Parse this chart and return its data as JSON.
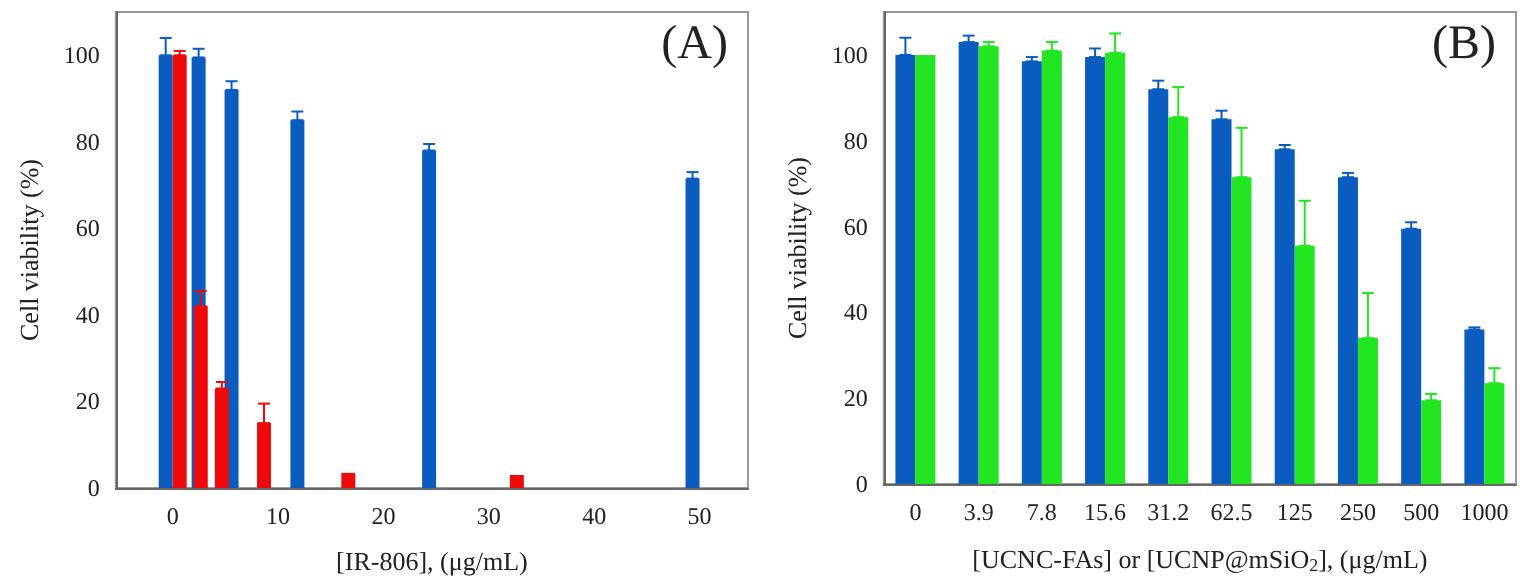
{
  "chart_data": [
    {
      "type": "bar",
      "xlabel": "[IR-806], (μg/mL)",
      "ylabel": "Cell viability (%)",
      "annotations": [
        "(A)"
      ],
      "xlim": [
        -5.4,
        54.6
      ],
      "xticks": [
        0,
        10,
        20,
        30,
        40,
        50
      ],
      "ylim": [
        0,
        110
      ],
      "yticks": [
        0,
        20,
        40,
        60,
        80,
        100
      ],
      "grid": false,
      "legend": false,
      "series": [
        {
          "color": "#0a5dbf",
          "x": [
            0,
            3.125,
            6.25,
            12.5,
            25,
            50
          ],
          "values": [
            100,
            99.5,
            92,
            85,
            78,
            71.5
          ],
          "errors": [
            [
              100,
              104
            ],
            [
              99.5,
              101.5
            ],
            [
              92,
              94
            ],
            [
              85,
              87
            ],
            [
              78,
              79.5
            ],
            [
              71.5,
              73
            ]
          ]
        },
        {
          "color": "#ee0a0a",
          "x": [
            0,
            2,
            4,
            8,
            16,
            32
          ],
          "values": [
            100,
            42,
            23,
            15,
            3.5,
            3
          ],
          "errors": [
            [
              100,
              101
            ],
            [
              42,
              45.5
            ],
            [
              23,
              24.5
            ],
            [
              15,
              19.5
            ],
            null,
            null
          ]
        }
      ]
    },
    {
      "type": "bar",
      "xlabel": "[UCNC-FAs] or [UCNP@mSiO$_{2}$], (μg/mL)",
      "ylabel": "Cell viability (%)",
      "annotations": [
        "(B)"
      ],
      "categories": [
        "0",
        "3.9",
        "7.8",
        "15.6",
        "31.2",
        "62.5",
        "125",
        "250",
        "500",
        "1000"
      ],
      "ylim": [
        0,
        110
      ],
      "yticks": [
        0,
        20,
        40,
        60,
        80,
        100
      ],
      "grid": false,
      "legend": false,
      "series": [
        {
          "color": "#0a5dbf",
          "values": [
            100,
            103,
            98.5,
            99.5,
            92,
            85,
            78,
            71.5,
            59.5,
            36
          ],
          "errors": [
            [
              100,
              104
            ],
            [
              103,
              104.5
            ],
            [
              98.5,
              99.5
            ],
            [
              99.5,
              101.5
            ],
            [
              92,
              94
            ],
            [
              85,
              87
            ],
            [
              78,
              79
            ],
            [
              71.5,
              72.5
            ],
            [
              59.5,
              61
            ],
            [
              36,
              36.5
            ]
          ]
        },
        {
          "color": "#22e622",
          "values": [
            100,
            102,
            101,
            100.5,
            85.5,
            71.5,
            55.5,
            34,
            19.5,
            23.5
          ],
          "errors": [
            null,
            [
              102,
              103
            ],
            [
              101,
              103
            ],
            [
              100.5,
              105
            ],
            [
              85.5,
              92.5
            ],
            [
              71.5,
              83
            ],
            [
              55.5,
              66
            ],
            [
              34,
              44.5
            ],
            [
              19.5,
              21
            ],
            [
              23.5,
              27
            ]
          ]
        }
      ]
    }
  ]
}
